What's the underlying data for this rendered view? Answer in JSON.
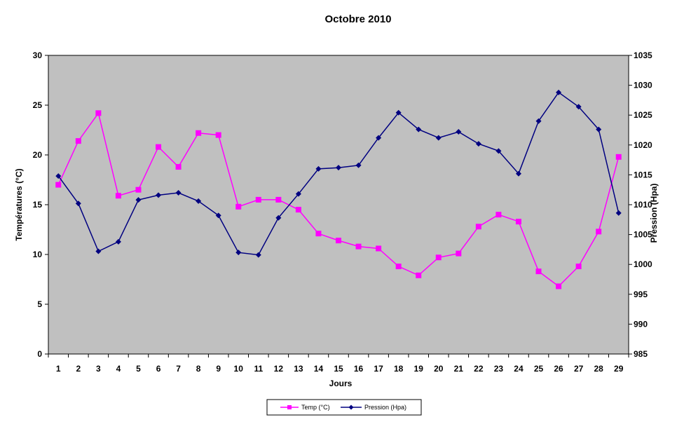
{
  "chart_data": {
    "type": "line",
    "title": "Octobre 2010",
    "xlabel": "Jours",
    "ylabel": "Températures (°C)",
    "y2label": "Pression (Hpa)",
    "categories": [
      "1",
      "2",
      "3",
      "4",
      "5",
      "6",
      "7",
      "8",
      "9",
      "10",
      "11",
      "12",
      "13",
      "14",
      "15",
      "16",
      "17",
      "18",
      "19",
      "20",
      "21",
      "22",
      "23",
      "24",
      "25",
      "26",
      "27",
      "28",
      "29"
    ],
    "ylim": [
      0,
      30
    ],
    "yticks": [
      "0",
      "5",
      "10",
      "15",
      "20",
      "25",
      "30"
    ],
    "y2lim": [
      985,
      1035
    ],
    "y2ticks": [
      "985",
      "990",
      "995",
      "1000",
      "1005",
      "1010",
      "1015",
      "1020",
      "1025",
      "1030",
      "1035"
    ],
    "grid": false,
    "legend_position": "bottom",
    "plot_background": "#c0c0c0",
    "series": [
      {
        "name": "Temp (°C)",
        "axis": "left",
        "color": "#ff00ff",
        "marker": "square",
        "values": [
          17.0,
          21.4,
          24.2,
          15.9,
          16.5,
          20.8,
          18.8,
          22.2,
          22.0,
          14.8,
          15.5,
          15.5,
          14.5,
          12.1,
          11.4,
          10.8,
          10.6,
          8.8,
          7.9,
          9.7,
          10.1,
          12.8,
          14.0,
          13.3,
          8.3,
          6.8,
          8.8,
          12.3,
          19.8
        ]
      },
      {
        "name": "Pression (Hpa)",
        "axis": "right",
        "color": "#000080",
        "marker": "diamond",
        "values": [
          1014.8,
          1010.2,
          1002.2,
          1003.8,
          1010.8,
          1011.6,
          1012.0,
          1010.6,
          1008.2,
          1002.0,
          1001.6,
          1007.8,
          1011.8,
          1016.0,
          1016.2,
          1016.6,
          1021.2,
          1025.4,
          1022.6,
          1021.2,
          1022.2,
          1020.2,
          1019.0,
          1015.2,
          1024.0,
          1028.8,
          1026.4,
          1022.6,
          1008.6
        ]
      }
    ]
  }
}
